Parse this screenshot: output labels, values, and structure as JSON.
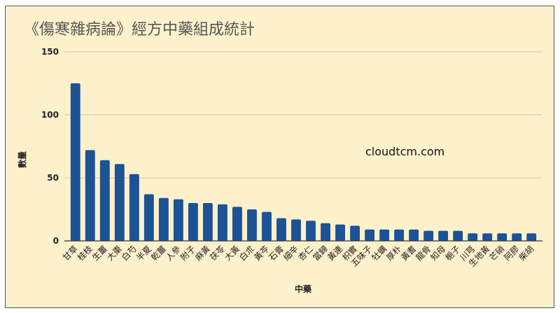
{
  "chart_data": {
    "type": "bar",
    "title": "《傷寒雜病論》經方中藥組成統計",
    "xlabel": "中藥",
    "ylabel": "數量",
    "ylim": [
      0,
      150
    ],
    "yticks": [
      0,
      50,
      100,
      150
    ],
    "grid": true,
    "annotation": "cloudtcm.com",
    "bar_color": "#1c5296",
    "background": "#fdf1cc",
    "categories": [
      "甘草",
      "桂枝",
      "生薑",
      "大棗",
      "白芍",
      "半夏",
      "乾薑",
      "人參",
      "附子",
      "麻黃",
      "茯苓",
      "大黃",
      "白朮",
      "黃芩",
      "石膏",
      "細辛",
      "杏仁",
      "當歸",
      "黃連",
      "枳實",
      "五味子",
      "牡蠣",
      "厚朴",
      "黃耆",
      "龍骨",
      "知母",
      "梔子",
      "川芎",
      "生地黃",
      "芒硝",
      "阿膠",
      "柴胡"
    ],
    "values": [
      125,
      72,
      64,
      61,
      53,
      37,
      34,
      33,
      30,
      30,
      29,
      27,
      25,
      23,
      18,
      17,
      16,
      14,
      13,
      12,
      9,
      9,
      9,
      9,
      8,
      8,
      8,
      6,
      6,
      6,
      6,
      6
    ]
  }
}
